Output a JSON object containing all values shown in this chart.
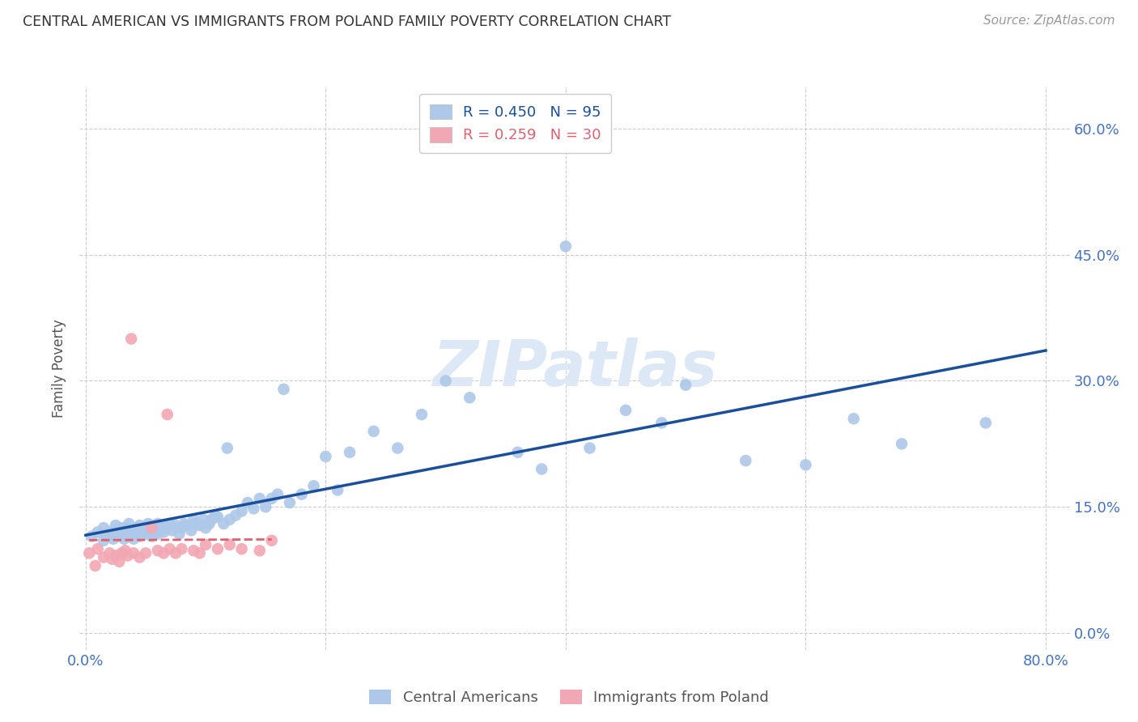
{
  "title": "CENTRAL AMERICAN VS IMMIGRANTS FROM POLAND FAMILY POVERTY CORRELATION CHART",
  "source": "Source: ZipAtlas.com",
  "xlabel_ticks": [
    "0.0%",
    "",
    "",
    "",
    "80.0%"
  ],
  "xlabel_tick_vals": [
    0.0,
    0.2,
    0.4,
    0.6,
    0.8
  ],
  "ylabel": "Family Poverty",
  "ylabel_ticks": [
    "0.0%",
    "15.0%",
    "30.0%",
    "45.0%",
    "60.0%"
  ],
  "ylabel_tick_vals": [
    0.0,
    0.15,
    0.3,
    0.45,
    0.6
  ],
  "xlim": [
    -0.005,
    0.82
  ],
  "ylim": [
    -0.02,
    0.65
  ],
  "legend1_label": "R = 0.450   N = 95",
  "legend2_label": "R = 0.259   N = 30",
  "legend_label1": "Central Americans",
  "legend_label2": "Immigrants from Poland",
  "blue_color": "#adc8e8",
  "pink_color": "#f2a8b4",
  "blue_line_color": "#1a4f9c",
  "pink_line_color": "#e06070",
  "axis_color": "#4472c4",
  "watermark_color": "#dce8f5",
  "background_color": "#ffffff",
  "blue_scatter_x": [
    0.005,
    0.01,
    0.015,
    0.015,
    0.018,
    0.02,
    0.022,
    0.023,
    0.025,
    0.025,
    0.028,
    0.03,
    0.03,
    0.032,
    0.033,
    0.035,
    0.035,
    0.036,
    0.037,
    0.038,
    0.04,
    0.04,
    0.042,
    0.043,
    0.045,
    0.045,
    0.046,
    0.048,
    0.05,
    0.05,
    0.052,
    0.053,
    0.055,
    0.055,
    0.057,
    0.058,
    0.06,
    0.06,
    0.062,
    0.063,
    0.065,
    0.065,
    0.068,
    0.07,
    0.072,
    0.075,
    0.078,
    0.08,
    0.082,
    0.085,
    0.088,
    0.09,
    0.092,
    0.095,
    0.098,
    0.1,
    0.103,
    0.105,
    0.108,
    0.11,
    0.115,
    0.118,
    0.12,
    0.125,
    0.13,
    0.135,
    0.14,
    0.145,
    0.15,
    0.155,
    0.16,
    0.165,
    0.17,
    0.18,
    0.19,
    0.2,
    0.21,
    0.22,
    0.24,
    0.26,
    0.28,
    0.3,
    0.32,
    0.36,
    0.38,
    0.4,
    0.42,
    0.45,
    0.48,
    0.5,
    0.55,
    0.6,
    0.64,
    0.68,
    0.75
  ],
  "blue_scatter_y": [
    0.115,
    0.12,
    0.11,
    0.125,
    0.115,
    0.12,
    0.118,
    0.112,
    0.122,
    0.128,
    0.115,
    0.118,
    0.125,
    0.112,
    0.12,
    0.115,
    0.125,
    0.13,
    0.12,
    0.118,
    0.112,
    0.122,
    0.118,
    0.125,
    0.115,
    0.128,
    0.12,
    0.122,
    0.118,
    0.125,
    0.13,
    0.12,
    0.115,
    0.128,
    0.125,
    0.12,
    0.118,
    0.13,
    0.125,
    0.122,
    0.12,
    0.128,
    0.125,
    0.13,
    0.122,
    0.128,
    0.118,
    0.125,
    0.13,
    0.128,
    0.122,
    0.135,
    0.13,
    0.128,
    0.135,
    0.125,
    0.13,
    0.135,
    0.14,
    0.138,
    0.13,
    0.22,
    0.135,
    0.14,
    0.145,
    0.155,
    0.148,
    0.16,
    0.15,
    0.16,
    0.165,
    0.29,
    0.155,
    0.165,
    0.175,
    0.21,
    0.17,
    0.215,
    0.24,
    0.22,
    0.26,
    0.3,
    0.28,
    0.215,
    0.195,
    0.46,
    0.22,
    0.265,
    0.25,
    0.295,
    0.205,
    0.2,
    0.255,
    0.225,
    0.25
  ],
  "pink_scatter_x": [
    0.003,
    0.008,
    0.01,
    0.015,
    0.02,
    0.022,
    0.025,
    0.028,
    0.03,
    0.033,
    0.035,
    0.038,
    0.04,
    0.045,
    0.05,
    0.055,
    0.06,
    0.065,
    0.068,
    0.07,
    0.075,
    0.08,
    0.09,
    0.095,
    0.1,
    0.11,
    0.12,
    0.13,
    0.145,
    0.155
  ],
  "pink_scatter_y": [
    0.095,
    0.08,
    0.1,
    0.09,
    0.095,
    0.088,
    0.092,
    0.085,
    0.095,
    0.098,
    0.092,
    0.35,
    0.095,
    0.09,
    0.095,
    0.125,
    0.098,
    0.095,
    0.26,
    0.1,
    0.095,
    0.1,
    0.098,
    0.095,
    0.105,
    0.1,
    0.105,
    0.1,
    0.098,
    0.11
  ]
}
